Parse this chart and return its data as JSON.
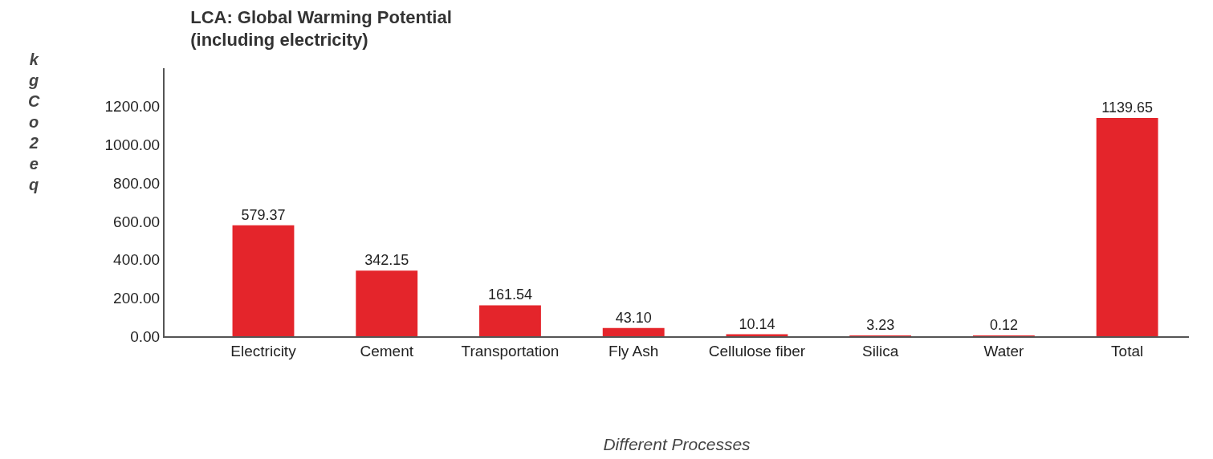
{
  "chart_data": {
    "type": "bar",
    "title": "LCA: Global Warming Potential\n(including electricity)",
    "xlabel": "Different Processes",
    "ylabel": "kgCo2eq",
    "categories": [
      "Electricity",
      "Cement",
      "Transportation",
      "Fly Ash",
      "Cellulose fiber",
      "Silica",
      "Water",
      "Total"
    ],
    "values": [
      579.37,
      342.15,
      161.54,
      43.1,
      10.14,
      3.23,
      0.12,
      1139.65
    ],
    "value_labels": [
      "579.37",
      "342.15",
      "161.54",
      "43.10",
      "10.14",
      "3.23",
      "0.12",
      "1139.65"
    ],
    "color": "#e4252b",
    "ylim": [
      0,
      1400
    ],
    "yticks": [
      {
        "value": 0,
        "label": "0.00"
      },
      {
        "value": 200,
        "label": "200.00"
      },
      {
        "value": 400,
        "label": "400.00"
      },
      {
        "value": 600,
        "label": "600.00"
      },
      {
        "value": 800,
        "label": "800.00"
      },
      {
        "value": 1000,
        "label": "1000.00"
      },
      {
        "value": 1200,
        "label": "1200.00"
      }
    ],
    "legend": false
  }
}
